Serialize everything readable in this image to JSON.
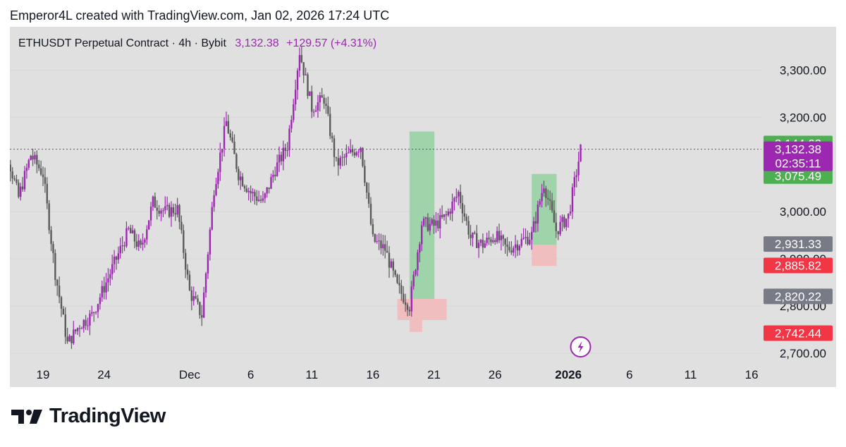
{
  "attribution": "Emperor4L created with TradingView.com, Jan 02, 2026 17:24 UTC",
  "symbol": {
    "title": "ETHUSDT Perpetual Contract · 4h · Bybit",
    "last": "3,132.38",
    "change": "+129.57 (+4.31%)"
  },
  "logo": {
    "icon": "tradingview-logo-icon",
    "text": "TradingView"
  },
  "lightning_icon": "lightning-icon",
  "colors": {
    "background": "#e0e0e0",
    "candle": "#9c27b0",
    "wick": "#5a5a5a",
    "green_tag": "#4caf50",
    "red_tag": "#f23645",
    "gray_tag": "#787b86",
    "purple_tag": "#9c27b0",
    "green_zone": "#8fd19e",
    "red_zone": "#f5b5b8"
  },
  "chart_data": {
    "type": "candlestick",
    "title": "ETHUSDT Perpetual Contract · 4h · Bybit",
    "x_tick_labels": [
      "19",
      "24",
      "Dec",
      "6",
      "11",
      "16",
      "21",
      "26",
      "2026",
      "6",
      "11",
      "16"
    ],
    "y_tick_labels": [
      "3,300.00",
      "3,200.00",
      "3,000.00",
      "2,900.00",
      "2,800.00",
      "2,700.00"
    ],
    "y_ticks": [
      3300,
      3200,
      3000,
      2900,
      2800,
      2700
    ],
    "ylim": [
      2628,
      3392
    ],
    "last_price": 3132.38,
    "countdown": "02:35:11",
    "price_tags": [
      {
        "label": "3,144.63",
        "value": 3144.63,
        "color": "green"
      },
      {
        "label": "3,075.49",
        "value": 3075.49,
        "color": "green"
      },
      {
        "label": "2,931.33",
        "value": 2931.33,
        "color": "gray"
      },
      {
        "label": "2,885.82",
        "value": 2885.82,
        "color": "red"
      },
      {
        "label": "2,820.22",
        "value": 2820.22,
        "color": "gray"
      },
      {
        "label": "2,742.44",
        "value": 2742.44,
        "color": "red"
      }
    ],
    "price_path": [
      {
        "date": "2025-11-15",
        "price": 3180
      },
      {
        "date": "2025-11-16",
        "price": 3130
      },
      {
        "date": "2025-11-17",
        "price": 3030
      },
      {
        "date": "2025-11-18",
        "price": 3120
      },
      {
        "date": "2025-11-19",
        "price": 3080
      },
      {
        "date": "2025-11-20",
        "price": 2870
      },
      {
        "date": "2025-11-21",
        "price": 2720
      },
      {
        "date": "2025-11-22",
        "price": 2760
      },
      {
        "date": "2025-11-23",
        "price": 2780
      },
      {
        "date": "2025-11-24",
        "price": 2840
      },
      {
        "date": "2025-11-25",
        "price": 2900
      },
      {
        "date": "2025-11-26",
        "price": 2960
      },
      {
        "date": "2025-11-27",
        "price": 2920
      },
      {
        "date": "2025-11-28",
        "price": 3020
      },
      {
        "date": "2025-11-29",
        "price": 3000
      },
      {
        "date": "2025-11-30",
        "price": 3005
      },
      {
        "date": "2025-12-01",
        "price": 2830
      },
      {
        "date": "2025-12-02",
        "price": 2780
      },
      {
        "date": "2025-12-03",
        "price": 3050
      },
      {
        "date": "2025-12-04",
        "price": 3190
      },
      {
        "date": "2025-12-05",
        "price": 3080
      },
      {
        "date": "2025-12-06",
        "price": 3040
      },
      {
        "date": "2025-12-07",
        "price": 3020
      },
      {
        "date": "2025-12-08",
        "price": 3090
      },
      {
        "date": "2025-12-09",
        "price": 3140
      },
      {
        "date": "2025-12-10",
        "price": 3340
      },
      {
        "date": "2025-12-11",
        "price": 3220
      },
      {
        "date": "2025-12-12",
        "price": 3240
      },
      {
        "date": "2025-12-13",
        "price": 3100
      },
      {
        "date": "2025-12-14",
        "price": 3120
      },
      {
        "date": "2025-12-15",
        "price": 3140
      },
      {
        "date": "2025-12-16",
        "price": 2940
      },
      {
        "date": "2025-12-17",
        "price": 2920
      },
      {
        "date": "2025-12-18",
        "price": 2840
      },
      {
        "date": "2025-12-19",
        "price": 2800
      },
      {
        "date": "2025-12-20",
        "price": 2975
      },
      {
        "date": "2025-12-21",
        "price": 2970
      },
      {
        "date": "2025-12-22",
        "price": 2990
      },
      {
        "date": "2025-12-23",
        "price": 3040
      },
      {
        "date": "2025-12-24",
        "price": 2945
      },
      {
        "date": "2025-12-25",
        "price": 2930
      },
      {
        "date": "2025-12-26",
        "price": 2950
      },
      {
        "date": "2025-12-27",
        "price": 2920
      },
      {
        "date": "2025-12-28",
        "price": 2935
      },
      {
        "date": "2025-12-29",
        "price": 2950
      },
      {
        "date": "2025-12-30",
        "price": 3060
      },
      {
        "date": "2025-12-31",
        "price": 2960
      },
      {
        "date": "2026-01-01",
        "price": 2990
      },
      {
        "date": "2026-01-02",
        "price": 3132
      }
    ],
    "zones": [
      {
        "type": "green",
        "from_date": "2025-12-19",
        "to_date": "2025-12-20",
        "top": 3170,
        "bottom": 2815
      },
      {
        "type": "red",
        "from_date": "2025-12-18",
        "to_date": "2025-12-21",
        "top": 2815,
        "bottom": 2770
      },
      {
        "type": "red",
        "from_date": "2025-12-19",
        "to_date": "2025-12-19",
        "top": 2770,
        "bottom": 2745
      },
      {
        "type": "green",
        "from_date": "2025-12-29",
        "to_date": "2025-12-30",
        "top": 3080,
        "bottom": 2930
      },
      {
        "type": "red",
        "from_date": "2025-12-29",
        "to_date": "2025-12-30",
        "top": 2930,
        "bottom": 2885
      }
    ]
  }
}
